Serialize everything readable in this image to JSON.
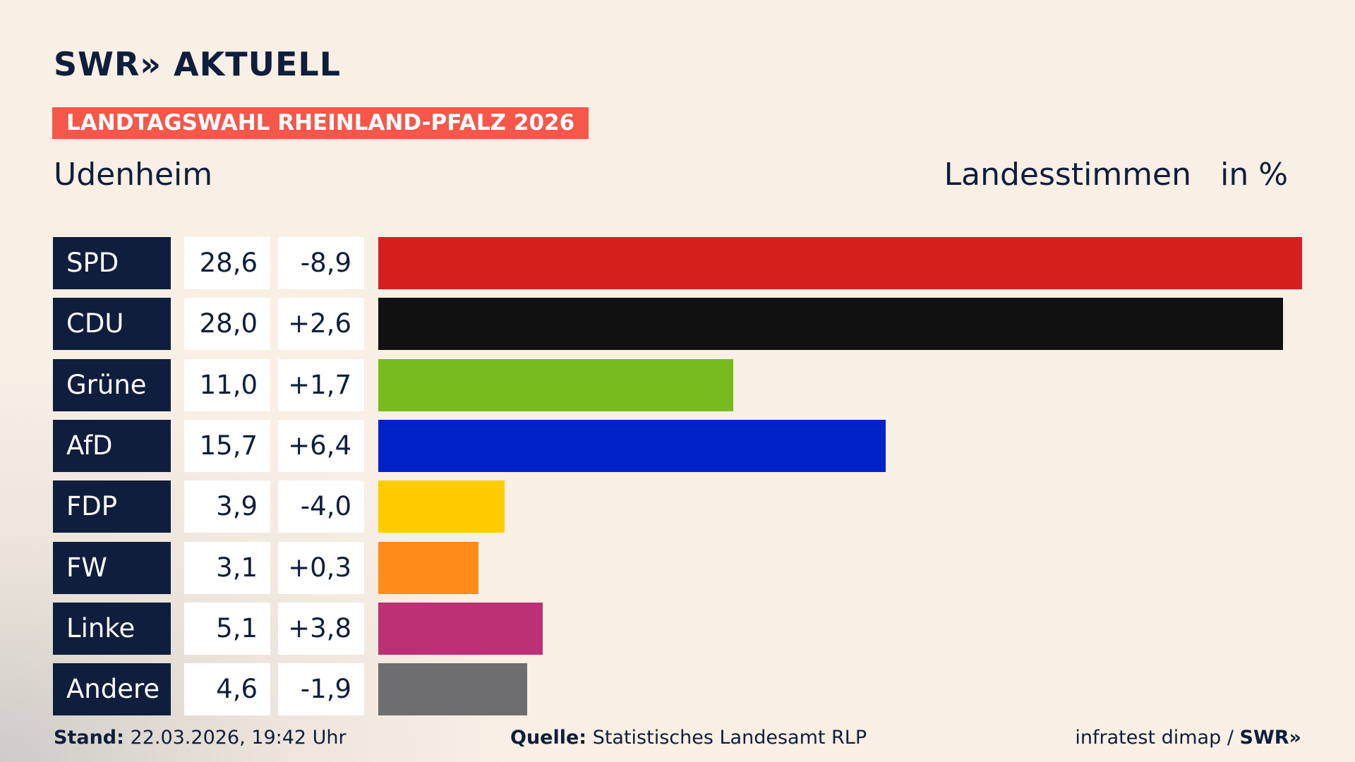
{
  "logo": "SWR» AKTUELL",
  "badge": "LANDTAGSWAHL RHEINLAND-PFALZ 2026",
  "footer": {
    "stand_label": "Stand:",
    "stand": "22.03.2026, 19:42 Uhr",
    "source_label": "Quelle:",
    "source": "Statistisches Landesamt RLP",
    "credit": "infratest dimap /",
    "credit_logo": "SWR»"
  },
  "chart_data": {
    "type": "bar",
    "title": "Udenheim",
    "subtitle": "Landesstimmen",
    "unit_label": "in %",
    "categories": [
      "SPD",
      "CDU",
      "Grüne",
      "AfD",
      "FDP",
      "FW",
      "Linke",
      "Andere"
    ],
    "values": [
      28.6,
      28.0,
      11.0,
      15.7,
      3.9,
      3.1,
      5.1,
      4.6
    ],
    "value_labels": [
      "28,6",
      "28,0",
      "11,0",
      "15,7",
      "3,9",
      "3,1",
      "5,1",
      "4,6"
    ],
    "change_labels": [
      "-8,9",
      "+2,6",
      "+1,7",
      "+6,4",
      "-4,0",
      "+0,3",
      "+3,8",
      "-1,9"
    ],
    "colors": [
      "#d61f1f",
      "#111111",
      "#78bb1e",
      "#0020c8",
      "#ffcc00",
      "#ff8c1a",
      "#bd3075",
      "#6e6e70"
    ],
    "xlim": [
      0,
      28.6
    ]
  }
}
